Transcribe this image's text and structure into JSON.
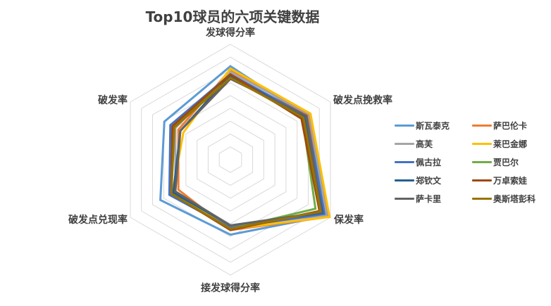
{
  "chart_data": {
    "type": "radar",
    "title": "Top10球员的六项关键数据",
    "axes": [
      "发球得分率",
      "破发点挽救率",
      "保发率",
      "接发球得分率",
      "破发点兑现率",
      "破发率"
    ],
    "scale": {
      "min": 0,
      "max": 1,
      "rings": 9,
      "grid": true
    },
    "legend_position": "right",
    "series": [
      {
        "name": "斯瓦泰克",
        "color": "#5B9BD5",
        "values": [
          0.81,
          0.76,
          0.97,
          0.65,
          0.7,
          0.66
        ]
      },
      {
        "name": "萨巴伦卡",
        "color": "#ED7D31",
        "values": [
          0.78,
          0.77,
          0.99,
          0.61,
          0.52,
          0.52
        ]
      },
      {
        "name": "高芙",
        "color": "#A5A5A5",
        "values": [
          0.76,
          0.79,
          0.96,
          0.58,
          0.55,
          0.55
        ]
      },
      {
        "name": "莱巴金娜",
        "color": "#FFC000",
        "values": [
          0.79,
          0.8,
          0.99,
          0.6,
          0.58,
          0.47
        ]
      },
      {
        "name": "佩古拉",
        "color": "#4472C4",
        "values": [
          0.74,
          0.76,
          0.94,
          0.59,
          0.61,
          0.6
        ]
      },
      {
        "name": "贾巴尔",
        "color": "#70AD47",
        "values": [
          0.72,
          0.72,
          0.85,
          0.6,
          0.59,
          0.57
        ]
      },
      {
        "name": "郑钦文",
        "color": "#255E91",
        "values": [
          0.73,
          0.74,
          0.92,
          0.57,
          0.57,
          0.5
        ]
      },
      {
        "name": "万卓索娃",
        "color": "#9E480E",
        "values": [
          0.74,
          0.71,
          0.89,
          0.61,
          0.59,
          0.58
        ]
      },
      {
        "name": "萨卡里",
        "color": "#636363",
        "values": [
          0.7,
          0.76,
          0.91,
          0.57,
          0.55,
          0.5
        ]
      },
      {
        "name": "奥斯塔彭科",
        "color": "#997300",
        "values": [
          0.71,
          0.73,
          0.9,
          0.6,
          0.59,
          0.56
        ]
      }
    ]
  },
  "title": "Top10球员的六项关键数据",
  "axis_labels": [
    "发球得分率",
    "破发点挽救率",
    "保发率",
    "接发球得分率",
    "破发点兑现率",
    "破发率"
  ],
  "legend": [
    {
      "label": "斯瓦泰克",
      "color": "#5B9BD5"
    },
    {
      "label": "萨巴伦卡",
      "color": "#ED7D31"
    },
    {
      "label": "高芙",
      "color": "#A5A5A5"
    },
    {
      "label": "莱巴金娜",
      "color": "#FFC000"
    },
    {
      "label": "佩古拉",
      "color": "#4472C4"
    },
    {
      "label": "贾巴尔",
      "color": "#70AD47"
    },
    {
      "label": "郑钦文",
      "color": "#255E91"
    },
    {
      "label": "万卓索娃",
      "color": "#9E480E"
    },
    {
      "label": "萨卡里",
      "color": "#636363"
    },
    {
      "label": "奥斯塔彭科",
      "color": "#997300"
    }
  ]
}
